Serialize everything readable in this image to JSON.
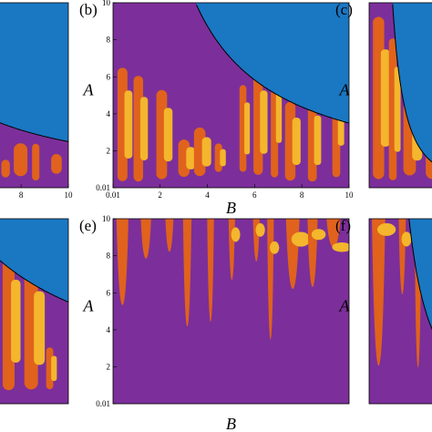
{
  "chart_data": [
    {
      "type": "region-map",
      "xlim": [
        0.01,
        10
      ],
      "ylim": [
        0.01,
        10
      ],
      "xticks": [
        8,
        10
      ]
    },
    {
      "type": "region-map",
      "label": "(b)",
      "y_label": "A",
      "x_label": "B",
      "xlim": [
        0.01,
        10
      ],
      "ylim": [
        0.01,
        10
      ],
      "xticks": [
        0.01,
        2,
        4,
        6,
        8,
        10
      ],
      "yticks": [
        0.01,
        2,
        4,
        6,
        8,
        10
      ]
    },
    {
      "type": "region-map",
      "label": "(c)",
      "y_label": "A",
      "xlim": [
        0.01,
        10
      ],
      "ylim": [
        0.01,
        10
      ]
    },
    {
      "type": "region-map",
      "xlim": [
        0.01,
        10
      ],
      "ylim": [
        0.01,
        10
      ]
    },
    {
      "type": "region-map",
      "label": "(e)",
      "y_label": "A",
      "x_label": "B",
      "xlim": [
        0.01,
        10
      ],
      "ylim": [
        0.01,
        10
      ],
      "yticks": [
        0.01,
        2,
        4,
        6,
        8,
        10
      ]
    },
    {
      "type": "region-map",
      "label": "(f)",
      "y_label": "A",
      "xlim": [
        0.01,
        10
      ],
      "ylim": [
        0.01,
        10
      ]
    }
  ]
}
